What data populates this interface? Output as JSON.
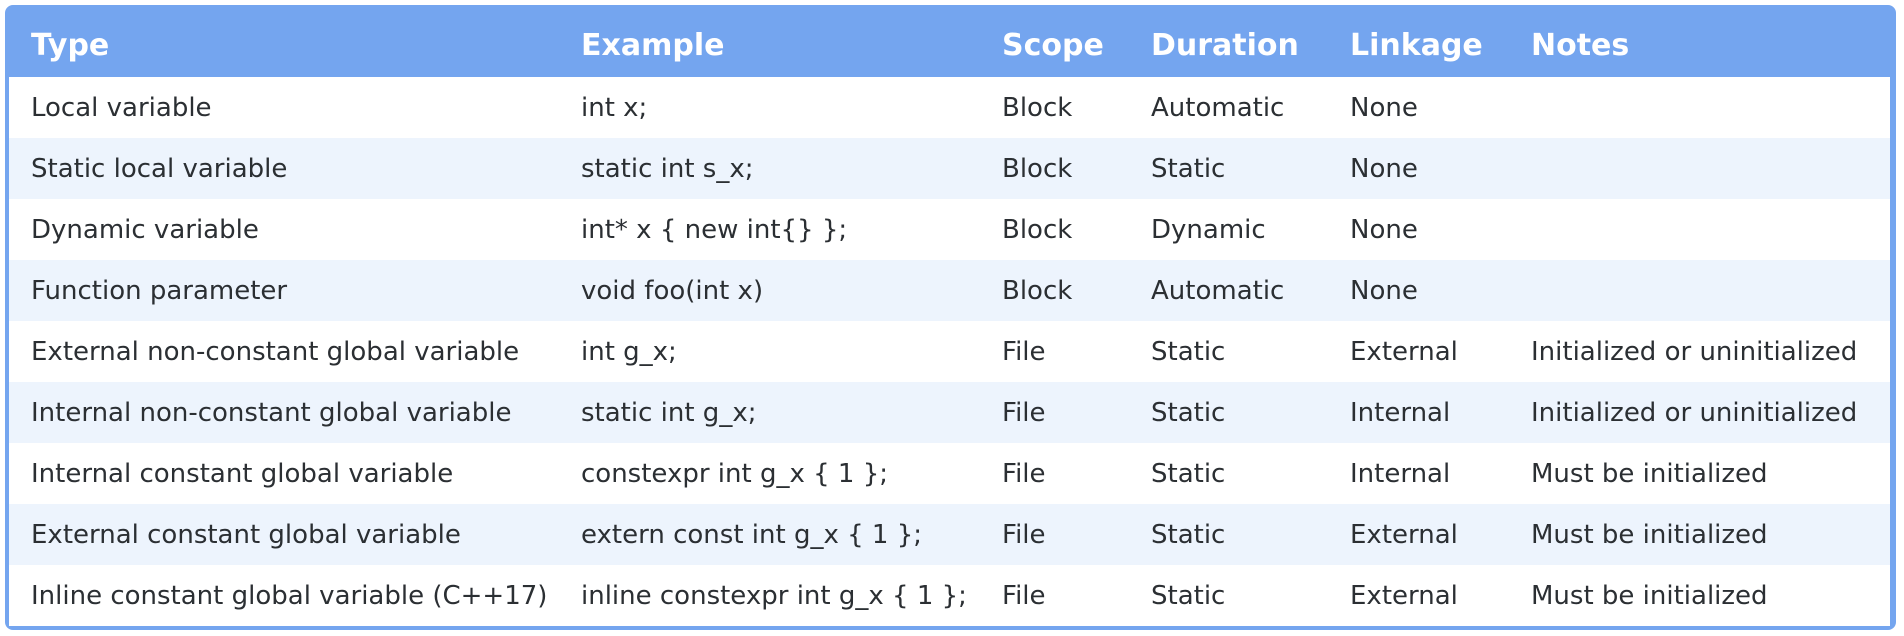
{
  "table": {
    "headers": [
      "Type",
      "Example",
      "Scope",
      "Duration",
      "Linkage",
      "Notes"
    ],
    "rows": [
      [
        "Local variable",
        "int x;",
        "Block",
        "Automatic",
        "None",
        ""
      ],
      [
        "Static local variable",
        "static int s_x;",
        "Block",
        "Static",
        "None",
        ""
      ],
      [
        "Dynamic variable",
        "int* x { new int{} };",
        "Block",
        "Dynamic",
        "None",
        ""
      ],
      [
        "Function parameter",
        "void foo(int x)",
        "Block",
        "Automatic",
        "None",
        ""
      ],
      [
        "External non-constant global variable",
        "int g_x;",
        "File",
        "Static",
        "External",
        "Initialized or uninitialized"
      ],
      [
        "Internal non-constant global variable",
        "static int g_x;",
        "File",
        "Static",
        "Internal",
        "Initialized or uninitialized"
      ],
      [
        "Internal constant global variable",
        "constexpr int g_x { 1 };",
        "File",
        "Static",
        "Internal",
        "Must be initialized"
      ],
      [
        "External constant global variable",
        "extern const int g_x { 1 };",
        "File",
        "Static",
        "External",
        "Must be initialized"
      ],
      [
        "Inline constant global variable (C++17)",
        "inline constexpr int g_x { 1 };",
        "File",
        "Static",
        "External",
        "Must be initialized"
      ]
    ]
  },
  "colors": {
    "header_background": "#74a5ef",
    "header_text": "#ffffff",
    "row_odd": "#ffffff",
    "row_even": "#edf4fd",
    "body_text": "#2b2f33"
  }
}
